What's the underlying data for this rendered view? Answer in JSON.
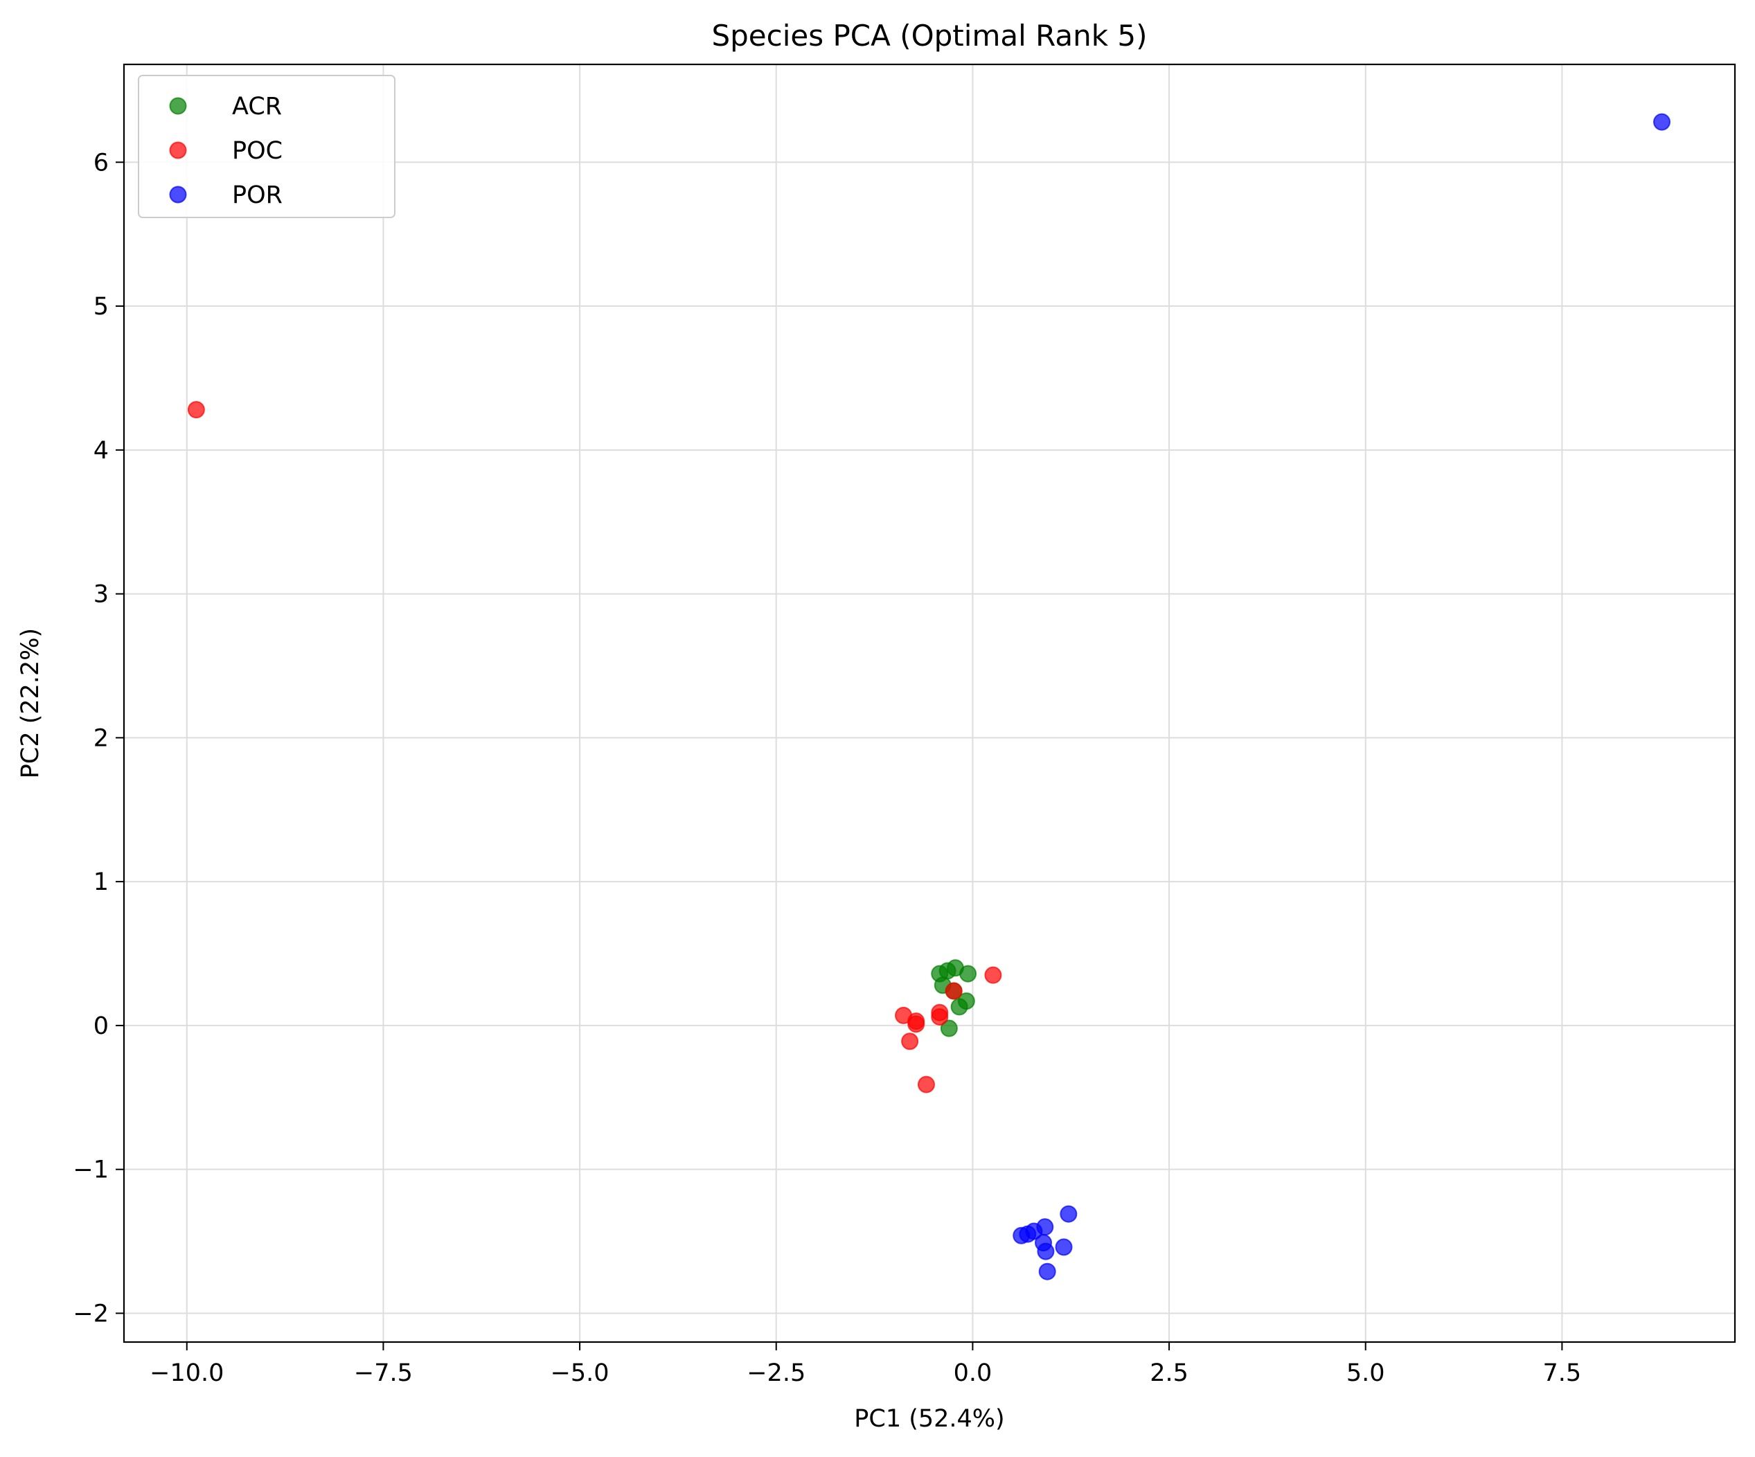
{
  "chart_data": {
    "type": "scatter",
    "title": "Species PCA (Optimal Rank 5)",
    "xlabel": "PC1 (52.4%)",
    "ylabel": "PC2 (22.2%)",
    "xlim": [
      -10.8,
      9.7
    ],
    "ylim": [
      -2.2,
      6.68
    ],
    "grid": true,
    "legend_position": "top-left",
    "x_ticks": [
      -10.0,
      -7.5,
      -5.0,
      -2.5,
      0.0,
      2.5,
      5.0,
      7.5
    ],
    "x_tick_labels": [
      "−10.0",
      "−7.5",
      "−5.0",
      "−2.5",
      "0.0",
      "2.5",
      "5.0",
      "7.5"
    ],
    "y_ticks": [
      -2,
      -1,
      0,
      1,
      2,
      3,
      4,
      5,
      6
    ],
    "y_tick_labels": [
      "−2",
      "−1",
      "0",
      "1",
      "2",
      "3",
      "4",
      "5",
      "6"
    ],
    "series": [
      {
        "name": "ACR",
        "color": "#008000",
        "points": [
          [
            -0.42,
            0.36
          ],
          [
            -0.32,
            0.38
          ],
          [
            -0.22,
            0.4
          ],
          [
            -0.06,
            0.36
          ],
          [
            -0.38,
            0.28
          ],
          [
            -0.24,
            0.24
          ],
          [
            -0.08,
            0.17
          ],
          [
            -0.17,
            0.13
          ],
          [
            -0.3,
            -0.02
          ]
        ]
      },
      {
        "name": "POC",
        "color": "#ff0000",
        "points": [
          [
            -9.88,
            4.28
          ],
          [
            0.26,
            0.35
          ],
          [
            -0.24,
            0.24
          ],
          [
            -0.42,
            0.09
          ],
          [
            -0.42,
            0.06
          ],
          [
            -0.88,
            0.07
          ],
          [
            -0.72,
            0.03
          ],
          [
            -0.72,
            0.01
          ],
          [
            -0.8,
            -0.11
          ],
          [
            -0.59,
            -0.41
          ]
        ]
      },
      {
        "name": "POR",
        "color": "#0000ff",
        "points": [
          [
            8.77,
            6.28
          ],
          [
            1.22,
            -1.31
          ],
          [
            0.92,
            -1.4
          ],
          [
            0.62,
            -1.46
          ],
          [
            0.7,
            -1.45
          ],
          [
            0.78,
            -1.43
          ],
          [
            0.9,
            -1.51
          ],
          [
            0.93,
            -1.57
          ],
          [
            1.16,
            -1.54
          ],
          [
            0.95,
            -1.71
          ]
        ]
      }
    ]
  }
}
